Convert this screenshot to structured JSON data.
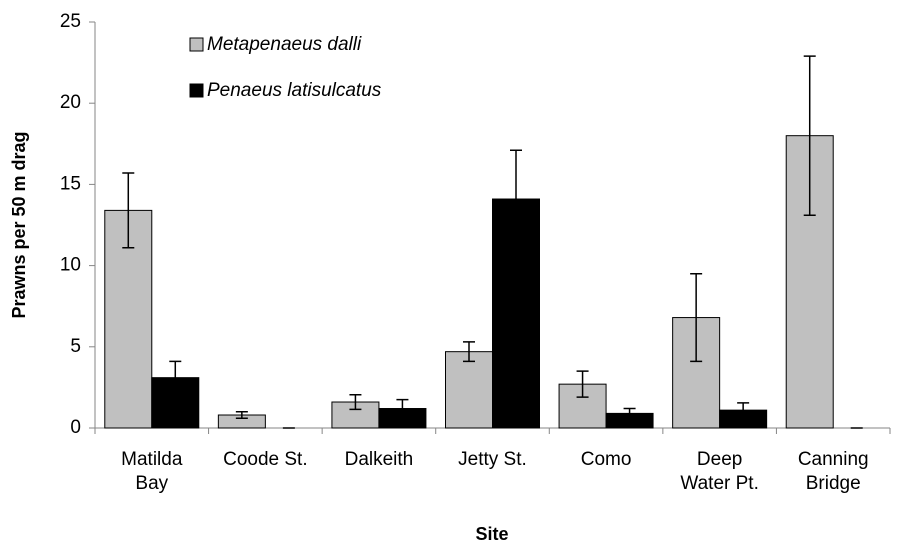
{
  "chart_data": {
    "type": "bar",
    "categories": [
      "Matilda\nBay",
      "Coode St.",
      "Dalkeith",
      "Jetty St.",
      "Como",
      "Deep\nWater Pt.",
      "Canning\nBridge"
    ],
    "series": [
      {
        "name": "Metapenaeus dalli",
        "color": "#c0c0c0",
        "values": [
          13.4,
          0.8,
          1.6,
          4.7,
          2.7,
          6.8,
          18.0
        ],
        "errors": [
          2.3,
          0.2,
          0.45,
          0.6,
          0.8,
          2.7,
          4.9
        ]
      },
      {
        "name": "Penaeus latisulcatus",
        "color": "#000000",
        "values": [
          3.1,
          0,
          1.2,
          14.1,
          0.9,
          1.1,
          0
        ],
        "errors": [
          1.0,
          0,
          0.55,
          3.0,
          0.3,
          0.45,
          0
        ]
      }
    ],
    "ylim": [
      0,
      25
    ],
    "yticks": [
      0,
      5,
      10,
      15,
      20,
      25
    ],
    "y_label": "Prawns per 50 m drag",
    "x_label": "Site",
    "legend": "upper left",
    "grid": false
  }
}
